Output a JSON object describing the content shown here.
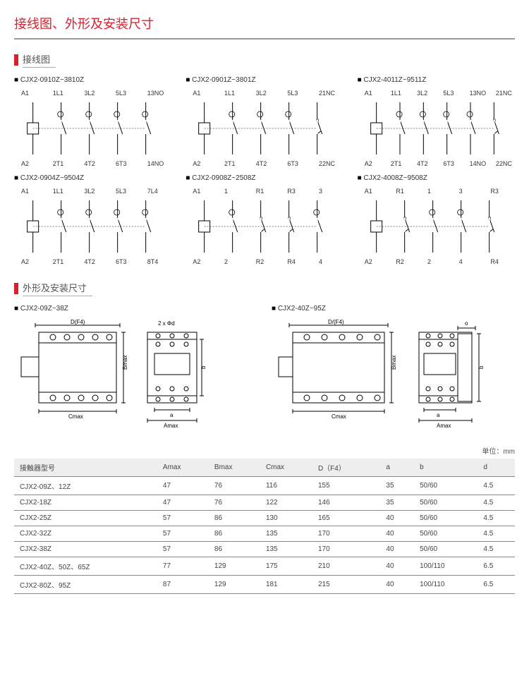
{
  "page_title": "接线图、外形及安装尺寸",
  "sections": {
    "wiring": "接线图",
    "outline": "外形及安装尺寸"
  },
  "wiring_diagrams": [
    {
      "model": "CJX2-0910Z~3810Z",
      "top": [
        "A1",
        "1L1",
        "3L2",
        "5L3",
        "13NO"
      ],
      "bot": [
        "A2",
        "2T1",
        "4T2",
        "6T3",
        "14NO"
      ],
      "coil": 0,
      "nc": [],
      "cols": 5
    },
    {
      "model": "CJX2-0901Z~3801Z",
      "top": [
        "A1",
        "1L1",
        "3L2",
        "5L3",
        "21NC"
      ],
      "bot": [
        "A2",
        "2T1",
        "4T2",
        "6T3",
        "22NC"
      ],
      "coil": 0,
      "nc": [
        4
      ],
      "cols": 5
    },
    {
      "model": "CJX2-4011Z~9511Z",
      "top": [
        "A1",
        "1L1",
        "3L2",
        "5L3",
        "13NO",
        "21NC"
      ],
      "bot": [
        "A2",
        "2T1",
        "4T2",
        "6T3",
        "14NO",
        "22NC"
      ],
      "coil": 0,
      "nc": [
        5
      ],
      "cols": 6
    },
    {
      "model": "CJX2-0904Z~9504Z",
      "top": [
        "A1",
        "1L1",
        "3L2",
        "5L3",
        "7L4"
      ],
      "bot": [
        "A2",
        "2T1",
        "4T2",
        "6T3",
        "8T4"
      ],
      "coil": 0,
      "nc": [],
      "cols": 5
    },
    {
      "model": "CJX2-0908Z~2508Z",
      "top": [
        "A1",
        "1",
        "R1",
        "R3",
        "3"
      ],
      "bot": [
        "A2",
        "2",
        "R2",
        "R4",
        "4"
      ],
      "coil": 0,
      "nc": [
        2,
        3
      ],
      "cols": 5
    },
    {
      "model": "CJX2-4008Z~9508Z",
      "top": [
        "A1",
        "R1",
        "1",
        "3",
        "R3"
      ],
      "bot": [
        "A2",
        "R2",
        "2",
        "4",
        "R4"
      ],
      "coil": 0,
      "nc": [
        1,
        4
      ],
      "cols": 5
    }
  ],
  "outline_models": [
    "CJX2-09Z~38Z",
    "CJX2-40Z~95Z"
  ],
  "dim_labels": {
    "d_f4": "D(F4)",
    "bmax": "Bmax",
    "cmax": "Cmax",
    "amax": "Amax",
    "two_phi_d": "2 x Φd",
    "a": "a",
    "b": "b",
    "d_f4_2": "D/(F4)",
    "o": "o"
  },
  "unit": "单位：mm",
  "table": {
    "columns": [
      "接触器型号",
      "Amax",
      "Bmax",
      "Cmax",
      "D（F4）",
      "a",
      "b",
      "d"
    ],
    "rows": [
      [
        "CJX2-09Z、12Z",
        "47",
        "76",
        "116",
        "155",
        "35",
        "50/60",
        "4.5"
      ],
      [
        "CJX2-18Z",
        "47",
        "76",
        "122",
        "146",
        "35",
        "50/60",
        "4.5"
      ],
      [
        "CJX2-25Z",
        "57",
        "86",
        "130",
        "165",
        "40",
        "50/60",
        "4.5"
      ],
      [
        "CJX2-32Z",
        "57",
        "86",
        "135",
        "170",
        "40",
        "50/60",
        "4.5"
      ],
      [
        "CJX2-38Z",
        "57",
        "86",
        "135",
        "170",
        "40",
        "50/60",
        "4.5"
      ],
      [
        "CJX2-40Z、50Z、65Z",
        "77",
        "129",
        "175",
        "210",
        "40",
        "100/110",
        "6.5"
      ],
      [
        "CJX2-80Z、95Z",
        "87",
        "129",
        "181",
        "215",
        "40",
        "100/110",
        "6.5"
      ]
    ]
  },
  "colors": {
    "accent": "#d91e2e",
    "border": "#888",
    "grid_bg": "#eee"
  }
}
